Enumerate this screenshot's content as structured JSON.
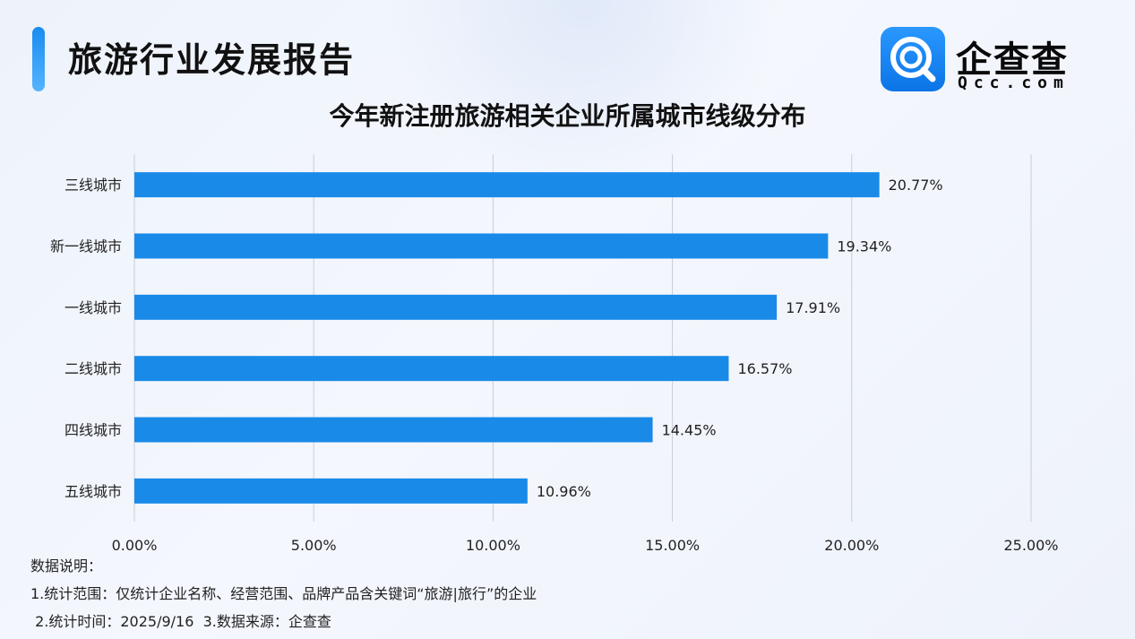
{
  "header": {
    "report_title": "旅游行业发展报告",
    "logo_text": "企查查",
    "logo_sub": "Qcc.com",
    "logo_icon": "qcc-magnifier-logo-icon"
  },
  "colors": {
    "bar": "#1a8ae8",
    "accent": "#1a8cf0",
    "grid": "#c8cdd6"
  },
  "chart_data": {
    "type": "bar",
    "orientation": "horizontal",
    "title": "今年新注册旅游相关企业所属城市线级分布",
    "categories": [
      "三线城市",
      "新一线城市",
      "一线城市",
      "二线城市",
      "四线城市",
      "五线城市"
    ],
    "values": [
      20.77,
      19.34,
      17.91,
      16.57,
      14.45,
      10.96
    ],
    "value_labels": [
      "20.77%",
      "19.34%",
      "17.91%",
      "16.57%",
      "14.45%",
      "10.96%"
    ],
    "xlim": [
      0,
      25
    ],
    "x_ticks": [
      0,
      5,
      10,
      15,
      20,
      25
    ],
    "x_tick_labels": [
      "0.00%",
      "5.00%",
      "10.00%",
      "15.00%",
      "20.00%",
      "25.00%"
    ],
    "grid": true,
    "legend": "none"
  },
  "notes": {
    "heading": "数据说明：",
    "line1": "1.统计范围：仅统计企业名称、经营范围、品牌产品含关键词“旅游|旅行”的企业",
    "line2": " 2.统计时间：2025/9/16  3.数据来源：企查查"
  }
}
